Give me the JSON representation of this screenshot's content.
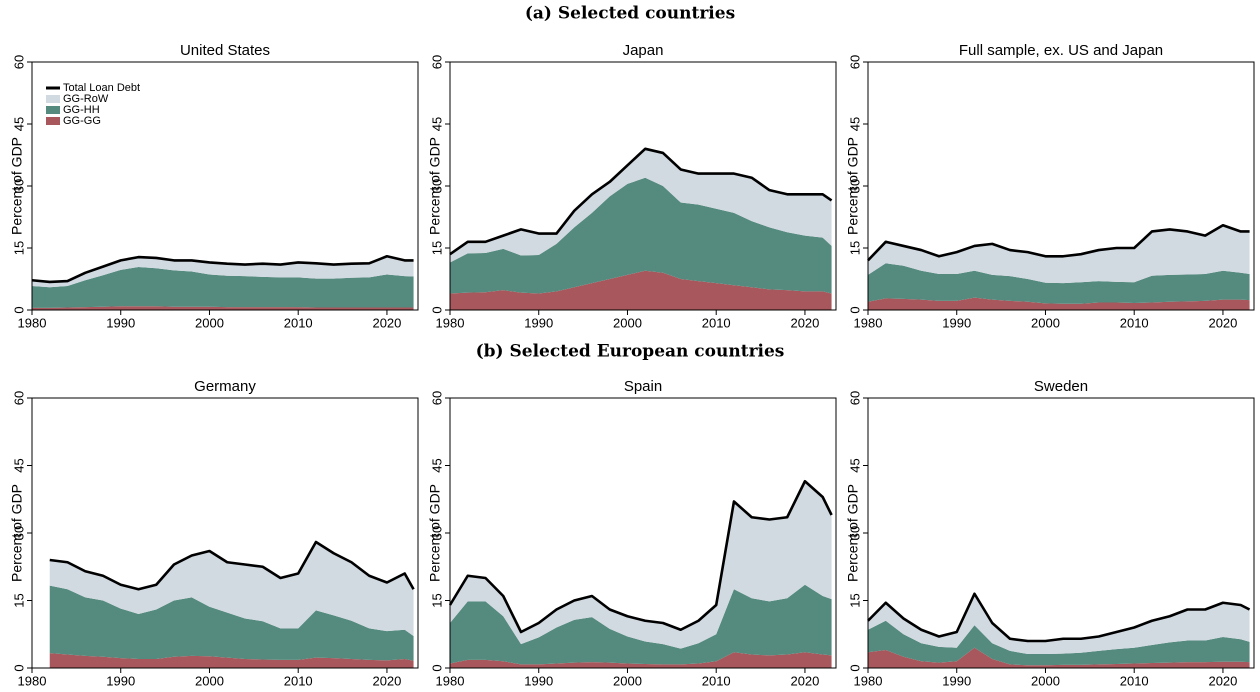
{
  "headings": [
    "(a) Selected countries",
    "(b) Selected European countries"
  ],
  "chart_data": [
    {
      "type": "area",
      "title": "United States",
      "ylabel": "Percent of GDP",
      "legend": "upper left",
      "x": [
        1980,
        1982,
        1984,
        1986,
        1988,
        1990,
        1992,
        1994,
        1996,
        1998,
        2000,
        2002,
        2004,
        2006,
        2008,
        2010,
        2012,
        2014,
        2016,
        2018,
        2020,
        2022,
        2023
      ],
      "xlim": [
        1980,
        2023.5
      ],
      "xticks": [
        1980,
        1990,
        2000,
        2010,
        2020
      ],
      "ylim": [
        0,
        60
      ],
      "yticks": [
        0,
        15,
        30,
        45,
        60
      ],
      "series": [
        {
          "name": "Total Loan Debt",
          "color": "#000000",
          "style": "line",
          "values": [
            7.2,
            6.8,
            7.0,
            9.0,
            10.5,
            12.0,
            12.8,
            12.6,
            12.0,
            12.0,
            11.5,
            11.2,
            11.0,
            11.2,
            11.0,
            11.5,
            11.3,
            11.0,
            11.2,
            11.3,
            13.0,
            12.0,
            12.0
          ]
        },
        {
          "name": "GG-RoW",
          "color": "#d1d9e1",
          "values": [
            1.4,
            1.3,
            1.2,
            1.8,
            2.1,
            2.3,
            2.4,
            2.5,
            2.4,
            2.7,
            2.9,
            2.9,
            2.8,
            3.2,
            3.1,
            3.6,
            3.7,
            3.4,
            3.4,
            3.4,
            4.4,
            3.8,
            3.9
          ]
        },
        {
          "name": "GG-HH",
          "color": "#558a7e",
          "values": [
            5.3,
            5.0,
            5.2,
            6.5,
            7.6,
            8.8,
            9.5,
            9.2,
            8.8,
            8.5,
            7.8,
            7.6,
            7.5,
            7.3,
            7.2,
            7.2,
            7.0,
            7.0,
            7.2,
            7.3,
            8.0,
            7.6,
            7.5
          ]
        },
        {
          "name": "GG-GG",
          "color": "#a8585c",
          "values": [
            0.5,
            0.5,
            0.6,
            0.7,
            0.8,
            0.9,
            0.9,
            0.9,
            0.8,
            0.8,
            0.8,
            0.7,
            0.7,
            0.7,
            0.7,
            0.7,
            0.6,
            0.6,
            0.6,
            0.6,
            0.6,
            0.6,
            0.6
          ]
        }
      ]
    },
    {
      "type": "area",
      "title": "Japan",
      "ylabel": "Percent of GDP",
      "x": [
        1980,
        1982,
        1984,
        1986,
        1988,
        1990,
        1992,
        1994,
        1996,
        1998,
        2000,
        2002,
        2004,
        2006,
        2008,
        2010,
        2012,
        2014,
        2016,
        2018,
        2020,
        2022,
        2023
      ],
      "xlim": [
        1980,
        2023.5
      ],
      "xticks": [
        1980,
        1990,
        2000,
        2010,
        2020
      ],
      "ylim": [
        0,
        60
      ],
      "yticks": [
        0,
        15,
        30,
        45,
        60
      ],
      "series": [
        {
          "color": "#000000",
          "style": "line",
          "values": [
            13.5,
            16.5,
            16.5,
            18,
            19.5,
            18.5,
            18.5,
            24,
            28,
            31,
            35,
            39,
            38,
            34,
            33,
            33,
            33,
            32,
            29,
            28,
            28,
            28,
            26.5
          ]
        },
        {
          "color": "#d1d9e1",
          "values": [
            2.0,
            2.8,
            2.7,
            3.2,
            6.3,
            5.2,
            2.5,
            4,
            4.5,
            3.5,
            4.5,
            7,
            8,
            8,
            7.5,
            8.5,
            9.5,
            10.5,
            9,
            9.2,
            10,
            10.5,
            11
          ]
        },
        {
          "color": "#558a7e",
          "values": [
            7.5,
            9.5,
            9.5,
            10.0,
            9.0,
            9.3,
            11.5,
            14.5,
            17,
            20,
            22,
            22.5,
            21,
            18.5,
            18.5,
            18,
            17.5,
            16,
            15,
            14,
            13.5,
            13,
            11.5
          ]
        },
        {
          "color": "#a8585c",
          "values": [
            4,
            4.2,
            4.3,
            4.8,
            4.2,
            4.0,
            4.5,
            5.5,
            6.5,
            7.5,
            8.5,
            9.5,
            9.0,
            7.5,
            7.0,
            6.5,
            6.0,
            5.5,
            5.0,
            4.8,
            4.5,
            4.5,
            4.0
          ]
        }
      ]
    },
    {
      "type": "area",
      "title": "Full sample, ex. US and Japan",
      "ylabel": "Percent of GDP",
      "x": [
        1980,
        1982,
        1984,
        1986,
        1988,
        1990,
        1992,
        1994,
        1996,
        1998,
        2000,
        2002,
        2004,
        2006,
        2008,
        2010,
        2012,
        2014,
        2016,
        2018,
        2020,
        2022,
        2023
      ],
      "xlim": [
        1980,
        2023.5
      ],
      "xticks": [
        1980,
        1990,
        2000,
        2010,
        2020
      ],
      "ylim": [
        0,
        60
      ],
      "yticks": [
        0,
        15,
        30,
        45,
        60
      ],
      "series": [
        {
          "color": "#000000",
          "style": "line",
          "values": [
            12,
            16.5,
            15.5,
            14.5,
            13,
            14,
            15.5,
            16,
            14.5,
            14,
            13,
            13,
            13.5,
            14.5,
            15,
            15,
            19,
            19.5,
            19,
            18,
            20.5,
            19,
            19
          ]
        },
        {
          "color": "#d1d9e1",
          "values": [
            3.5,
            5.2,
            4.8,
            5.0,
            4.3,
            5.3,
            6.0,
            7.5,
            6.3,
            6.5,
            6.4,
            6.5,
            6.8,
            7.5,
            8.2,
            8.3,
            10.7,
            11.0,
            10.4,
            9.3,
            11.0,
            10.0,
            10.3
          ]
        },
        {
          "color": "#558a7e",
          "values": [
            6.5,
            8.5,
            8,
            7,
            6.5,
            6.5,
            6.5,
            6,
            6,
            5.5,
            5,
            5,
            5.2,
            5.2,
            5,
            5,
            6.5,
            6.5,
            6.5,
            6.5,
            7,
            6.5,
            6.3
          ]
        },
        {
          "color": "#a8585c",
          "values": [
            2,
            2.8,
            2.7,
            2.5,
            2.2,
            2.2,
            3.0,
            2.5,
            2.2,
            2.0,
            1.6,
            1.5,
            1.5,
            1.8,
            1.8,
            1.7,
            1.8,
            2.0,
            2.1,
            2.2,
            2.5,
            2.5,
            2.4
          ]
        }
      ]
    },
    {
      "type": "area",
      "title": "Germany",
      "ylabel": "Percent of GDP",
      "x": [
        1982,
        1984,
        1986,
        1988,
        1990,
        1992,
        1994,
        1996,
        1998,
        2000,
        2002,
        2004,
        2006,
        2008,
        2010,
        2012,
        2014,
        2016,
        2018,
        2020,
        2022,
        2023
      ],
      "xlim": [
        1980,
        2023.5
      ],
      "xticks": [
        1980,
        1990,
        2000,
        2010,
        2020
      ],
      "ylim": [
        0,
        60
      ],
      "yticks": [
        0,
        15,
        30,
        45,
        60
      ],
      "series": [
        {
          "color": "#000000",
          "style": "line",
          "values": [
            24,
            23.5,
            21.5,
            20.5,
            18.5,
            17.5,
            18.5,
            23,
            25,
            26,
            23.5,
            23,
            22.5,
            20,
            21,
            28,
            25.5,
            23.5,
            20.5,
            19,
            21,
            17.5
          ]
        },
        {
          "color": "#d1d9e1",
          "values": [
            5.7,
            6.0,
            5.8,
            5.5,
            5.3,
            5.5,
            5.5,
            8.0,
            9.3,
            12.4,
            11.2,
            12.0,
            12.1,
            11.2,
            12.2,
            15.2,
            13.8,
            13.0,
            11.7,
            10.8,
            12.5,
            10.4
          ]
        },
        {
          "color": "#558a7e",
          "values": [
            15,
            14.5,
            13,
            12.5,
            11,
            10,
            11,
            12.5,
            13,
            11,
            10,
            9,
            8.5,
            7,
            7,
            10.5,
            9.5,
            8.5,
            7,
            6.5,
            6.5,
            5.5
          ]
        },
        {
          "color": "#a8585c",
          "values": [
            3.3,
            3.0,
            2.7,
            2.5,
            2.2,
            2.0,
            2.0,
            2.5,
            2.7,
            2.6,
            2.3,
            2.0,
            1.9,
            1.8,
            1.8,
            2.3,
            2.2,
            2.0,
            1.8,
            1.7,
            2.0,
            1.6
          ]
        }
      ]
    },
    {
      "type": "area",
      "title": "Spain",
      "ylabel": "Percent of GDP",
      "x": [
        1980,
        1982,
        1984,
        1986,
        1988,
        1990,
        1992,
        1994,
        1996,
        1998,
        2000,
        2002,
        2004,
        2006,
        2008,
        2010,
        2012,
        2014,
        2016,
        2018,
        2020,
        2022,
        2023
      ],
      "xlim": [
        1980,
        2023.5
      ],
      "xticks": [
        1980,
        1990,
        2000,
        2010,
        2020
      ],
      "ylim": [
        0,
        60
      ],
      "yticks": [
        0,
        15,
        30,
        45,
        60
      ],
      "series": [
        {
          "color": "#000000",
          "style": "line",
          "values": [
            14,
            20.5,
            20,
            16,
            8,
            10,
            13,
            15,
            16,
            13,
            11.5,
            10.5,
            10,
            8.5,
            10.5,
            14,
            37,
            33.5,
            33,
            33.5,
            41.5,
            38,
            34
          ]
        },
        {
          "color": "#d1d9e1",
          "values": [
            4,
            5.7,
            5.2,
            4.5,
            2.7,
            3.2,
            4,
            4.3,
            4.7,
            4.3,
            4.5,
            4.6,
            4.7,
            4.2,
            5.0,
            6.5,
            19.5,
            18.0,
            18.2,
            18.0,
            23.0,
            22.0,
            18.7
          ]
        },
        {
          "color": "#558a7e",
          "values": [
            9,
            13,
            13,
            10,
            4.5,
            6,
            8,
            9.5,
            10,
            7.5,
            6,
            5,
            4.5,
            3.5,
            4.5,
            6,
            14,
            12.5,
            12,
            12.5,
            15,
            13,
            12.5
          ]
        },
        {
          "color": "#a8585c",
          "values": [
            1.0,
            1.8,
            1.8,
            1.5,
            0.8,
            0.8,
            1.0,
            1.2,
            1.3,
            1.2,
            1.0,
            0.9,
            0.8,
            0.8,
            1.0,
            1.5,
            3.5,
            3.0,
            2.8,
            3.0,
            3.5,
            3.0,
            2.8
          ]
        }
      ]
    },
    {
      "type": "area",
      "title": "Sweden",
      "ylabel": "Percent of GDP",
      "x": [
        1980,
        1982,
        1984,
        1986,
        1988,
        1990,
        1992,
        1994,
        1996,
        1998,
        2000,
        2002,
        2004,
        2006,
        2008,
        2010,
        2012,
        2014,
        2016,
        2018,
        2020,
        2022,
        2023
      ],
      "xlim": [
        1980,
        2023.5
      ],
      "xticks": [
        1980,
        1990,
        2000,
        2010,
        2020
      ],
      "ylim": [
        0,
        60
      ],
      "yticks": [
        0,
        15,
        30,
        45,
        60
      ],
      "series": [
        {
          "color": "#000000",
          "style": "line",
          "values": [
            10.5,
            14.5,
            11,
            8.5,
            7,
            8,
            16.5,
            10,
            6.5,
            6,
            6,
            6.5,
            6.5,
            7,
            8,
            9,
            10.5,
            11.5,
            13,
            13,
            14.5,
            14,
            13
          ]
        },
        {
          "color": "#d1d9e1",
          "values": [
            2.0,
            4.0,
            3.5,
            3.0,
            2.3,
            3.5,
            7.0,
            4.5,
            2.7,
            2.9,
            2.9,
            3.3,
            3.1,
            3.2,
            3.8,
            4.5,
            5.4,
            5.8,
            6.9,
            6.9,
            7.6,
            7.6,
            7.2
          ]
        },
        {
          "color": "#558a7e",
          "values": [
            5,
            6.5,
            5,
            4,
            3.5,
            3,
            5,
            3.5,
            3,
            2.5,
            2.5,
            2.5,
            2.7,
            3,
            3.3,
            3.5,
            4,
            4.5,
            4.8,
            4.8,
            5.5,
            5,
            4.5
          ]
        },
        {
          "color": "#a8585c",
          "values": [
            3.5,
            4.0,
            2.5,
            1.5,
            1.2,
            1.5,
            4.5,
            2.0,
            0.8,
            0.6,
            0.6,
            0.7,
            0.7,
            0.8,
            0.9,
            1.0,
            1.1,
            1.2,
            1.3,
            1.3,
            1.4,
            1.4,
            1.3
          ]
        }
      ]
    }
  ]
}
